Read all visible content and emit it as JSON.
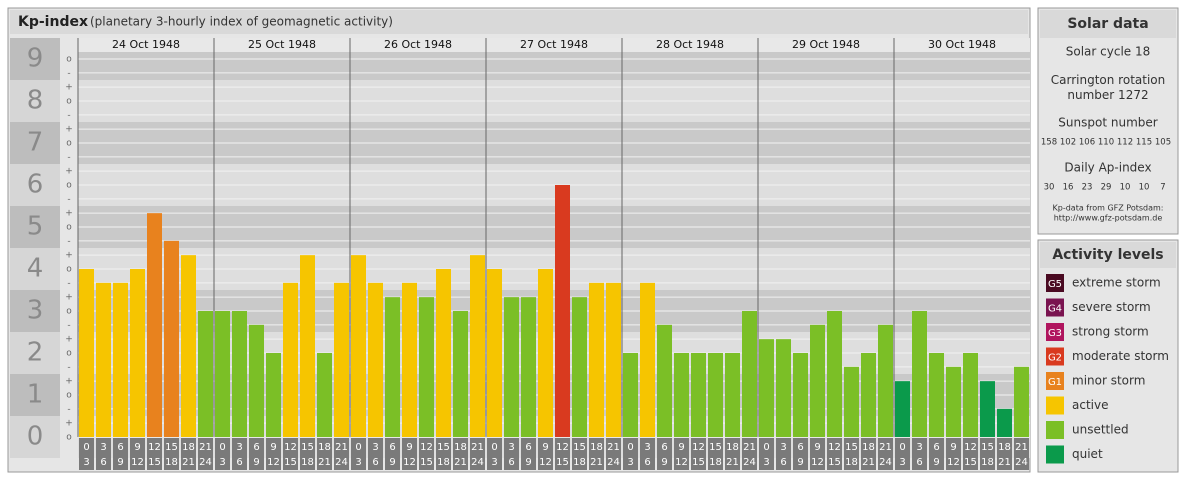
{
  "chart_data": {
    "type": "bar",
    "title": "Kp-index",
    "subtitle": "(planetary 3-hourly index of geomagnetic activity)",
    "days": [
      {
        "date": "24 Oct 1948",
        "values": [
          4,
          3.67,
          3.67,
          4,
          5.33,
          4.67,
          4.33,
          3
        ],
        "colors": [
          "#f6c500",
          "#f6c500",
          "#f6c500",
          "#f6c500",
          "#e8821e",
          "#e8821e",
          "#f6c500",
          "#7bbf26"
        ]
      },
      {
        "date": "25 Oct 1948",
        "values": [
          3,
          3,
          2.67,
          2,
          3.67,
          4.33,
          2,
          3.67
        ],
        "colors": [
          "#7bbf26",
          "#7bbf26",
          "#7bbf26",
          "#7bbf26",
          "#f6c500",
          "#f6c500",
          "#7bbf26",
          "#f6c500"
        ]
      },
      {
        "date": "26 Oct 1948",
        "values": [
          4.33,
          3.67,
          3.33,
          3.67,
          3.33,
          4,
          3,
          4.33
        ],
        "colors": [
          "#f6c500",
          "#f6c500",
          "#7bbf26",
          "#f6c500",
          "#7bbf26",
          "#f6c500",
          "#7bbf26",
          "#f6c500"
        ]
      },
      {
        "date": "27 Oct 1948",
        "values": [
          4,
          3.33,
          3.33,
          4,
          6,
          3.33,
          3.67,
          3.67
        ],
        "colors": [
          "#f6c500",
          "#7bbf26",
          "#7bbf26",
          "#f6c500",
          "#d93a1f",
          "#7bbf26",
          "#f6c500",
          "#f6c500"
        ]
      },
      {
        "date": "28 Oct 1948",
        "values": [
          2,
          3.67,
          2.67,
          2,
          2,
          2,
          2,
          3
        ],
        "colors": [
          "#7bbf26",
          "#f6c500",
          "#7bbf26",
          "#7bbf26",
          "#7bbf26",
          "#7bbf26",
          "#7bbf26",
          "#7bbf26"
        ]
      },
      {
        "date": "29 Oct 1948",
        "values": [
          2.33,
          2.33,
          2,
          2.67,
          3,
          1.67,
          2,
          2.67
        ],
        "colors": [
          "#7bbf26",
          "#7bbf26",
          "#7bbf26",
          "#7bbf26",
          "#7bbf26",
          "#7bbf26",
          "#7bbf26",
          "#7bbf26"
        ]
      },
      {
        "date": "30 Oct 1948",
        "values": [
          1.33,
          3,
          2,
          1.67,
          2,
          1.33,
          0.67,
          1.67
        ],
        "colors": [
          "#0b9a4b",
          "#7bbf26",
          "#7bbf26",
          "#7bbf26",
          "#7bbf26",
          "#0b9a4b",
          "#0b9a4b",
          "#7bbf26"
        ]
      }
    ],
    "hours_start": [
      "0",
      "3",
      "6",
      "9",
      "12",
      "15",
      "18",
      "21"
    ],
    "hours_end": [
      "3",
      "6",
      "9",
      "12",
      "15",
      "18",
      "21",
      "24"
    ],
    "ylim": [
      -0.5,
      9.5
    ],
    "yticks": [
      0,
      1,
      2,
      3,
      4,
      5,
      6,
      7,
      8,
      9
    ],
    "minor_yticks": [
      {
        "value": 0,
        "label": "o"
      },
      {
        "value": 0.33,
        "label": "+"
      },
      {
        "value": 0.67,
        "label": "-"
      },
      {
        "value": 1,
        "label": "o"
      },
      {
        "value": 1.33,
        "label": "+"
      },
      {
        "value": 1.67,
        "label": "-"
      },
      {
        "value": 2,
        "label": "o"
      },
      {
        "value": 2.33,
        "label": "+"
      },
      {
        "value": 2.67,
        "label": "-"
      },
      {
        "value": 3,
        "label": "o"
      },
      {
        "value": 3.33,
        "label": "+"
      },
      {
        "value": 3.67,
        "label": "-"
      },
      {
        "value": 4,
        "label": "o"
      },
      {
        "value": 4.33,
        "label": "+"
      },
      {
        "value": 4.67,
        "label": "-"
      },
      {
        "value": 5,
        "label": "o"
      },
      {
        "value": 5.33,
        "label": "+"
      },
      {
        "value": 5.67,
        "label": "-"
      },
      {
        "value": 6,
        "label": "o"
      },
      {
        "value": 6.33,
        "label": "+"
      },
      {
        "value": 6.67,
        "label": "-"
      },
      {
        "value": 7,
        "label": "o"
      },
      {
        "value": 7.33,
        "label": "+"
      },
      {
        "value": 7.67,
        "label": "-"
      },
      {
        "value": 8,
        "label": "o"
      },
      {
        "value": 8.33,
        "label": "+"
      },
      {
        "value": 8.67,
        "label": "-"
      },
      {
        "value": 9,
        "label": "o"
      }
    ],
    "grid": true
  },
  "solar_data": {
    "title": "Solar data",
    "solar_cycle": "Solar cycle 18",
    "carrington": "Carrington rotation number 1272",
    "sunspot_label": "Sunspot number",
    "sunspot_numbers": [
      158,
      102,
      106,
      110,
      112,
      115,
      105
    ],
    "ap_label": "Daily Ap-index",
    "ap_values": [
      30,
      16,
      23,
      29,
      10,
      10,
      7
    ],
    "source_line1": "Kp-data from GFZ Potsdam:",
    "source_line2": "http://www.gfz-potsdam.de"
  },
  "activity_levels": {
    "title": "Activity levels",
    "items": [
      {
        "code": "G5",
        "name": "extreme storm",
        "color": "#4a0a22"
      },
      {
        "code": "G4",
        "name": "severe storm",
        "color": "#7a1450"
      },
      {
        "code": "G3",
        "name": "strong storm",
        "color": "#b0155e"
      },
      {
        "code": "G2",
        "name": "moderate storm",
        "color": "#d93a1f"
      },
      {
        "code": "G1",
        "name": "minor storm",
        "color": "#e8821e"
      },
      {
        "name": "active",
        "color": "#f6c500"
      },
      {
        "name": "unsettled",
        "color": "#7bbf26"
      },
      {
        "name": "quiet",
        "color": "#0b9a4b"
      }
    ]
  }
}
